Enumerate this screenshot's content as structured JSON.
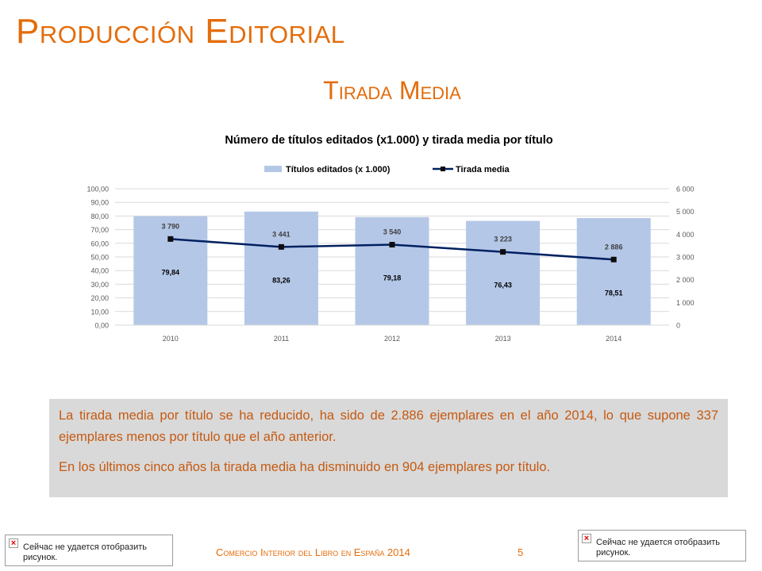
{
  "slide": {
    "title": "Producción Editorial",
    "section_title": "Tirada Media"
  },
  "chart_data": {
    "type": "bar",
    "title": "Número de títulos editados (x1.000) y tirada media por título",
    "categories": [
      "2010",
      "2011",
      "2012",
      "2013",
      "2014"
    ],
    "series": [
      {
        "name": "Títulos editados (x 1.000)",
        "type": "bar",
        "axis": "left",
        "values": [
          79.84,
          83.26,
          79.18,
          76.43,
          78.51
        ],
        "labels": [
          "79,84",
          "83,26",
          "79,18",
          "76,43",
          "78,51"
        ],
        "color": "#B4C7E7"
      },
      {
        "name": "Tirada media",
        "type": "line",
        "axis": "right",
        "values": [
          3790,
          3441,
          3540,
          3223,
          2886
        ],
        "labels": [
          "3 790",
          "3 441",
          "3 540",
          "3 223",
          "2 886"
        ],
        "color": "#002060"
      }
    ],
    "y_left": {
      "lim": [
        0,
        100
      ],
      "ticks": [
        "0,00",
        "10,00",
        "20,00",
        "30,00",
        "40,00",
        "50,00",
        "60,00",
        "70,00",
        "80,00",
        "90,00",
        "100,00"
      ]
    },
    "y_right": {
      "lim": [
        0,
        6000
      ],
      "ticks": [
        "0",
        "1 000",
        "2 000",
        "3 000",
        "4 000",
        "5 000",
        "6 000"
      ]
    },
    "grid": true,
    "legend": "top"
  },
  "note": {
    "paragraph1": "La tirada media por título se ha reducido, ha sido de 2.886 ejemplares en el año 2014, lo que supone 337 ejemplares menos por título que el año anterior.",
    "paragraph2": "En los últimos cinco años la tirada media ha disminuido en 904 ejemplares por título."
  },
  "footer": {
    "text": "Comercio Interior del Libro en España 2014",
    "page_number": "5",
    "image_placeholder": "Сейчас не удается отобразить рисунок."
  }
}
